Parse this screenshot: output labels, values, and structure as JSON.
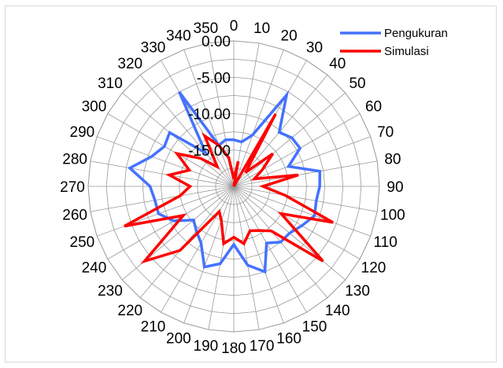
{
  "chart_data": {
    "type": "radar",
    "title": "",
    "theta_labels": [
      "0",
      "10",
      "20",
      "30",
      "40",
      "50",
      "60",
      "70",
      "80",
      "90",
      "100",
      "110",
      "120",
      "130",
      "140",
      "150",
      "160",
      "170",
      "180",
      "190",
      "200",
      "210",
      "220",
      "230",
      "240",
      "250",
      "260",
      "270",
      "280",
      "290",
      "300",
      "310",
      "320",
      "330",
      "340",
      "350"
    ],
    "radial_tick_labels": [
      "-15.00",
      "-10.00",
      "-5.00",
      "0.00"
    ],
    "rlim": [
      -20,
      0
    ],
    "legend_position": "top-right",
    "colors": {
      "Pengukuran": "#4472ff",
      "Simulasi": "#ff0000",
      "grid": "#999999"
    },
    "series": [
      {
        "name": "Pengukuran",
        "values": [
          -13.6,
          -13.8,
          -12.5,
          -5.5,
          -10.3,
          -9.6,
          -9.5,
          -12.0,
          -8.0,
          -8.2,
          -8.5,
          -8.2,
          -9.2,
          -10.0,
          -10.0,
          -11.0,
          -7.5,
          -9.0,
          -12.0,
          -9.2,
          -8.2,
          -11.0,
          -12.0,
          -12.8,
          -10.5,
          -9.0,
          -9.0,
          -8.5,
          -5.5,
          -8.0,
          -9.0,
          -8.5,
          -14.0,
          -5.0,
          -14.0,
          -13.5
        ]
      },
      {
        "name": "Simulasi",
        "values": [
          -19.0,
          -16.5,
          -20.0,
          -8.5,
          -17.5,
          -13.0,
          -15.5,
          -17.0,
          -11.0,
          -16.0,
          -12.8,
          -5.5,
          -12.5,
          -4.0,
          -12.0,
          -13.0,
          -13.5,
          -12.0,
          -13.0,
          -12.0,
          -15.0,
          -16.0,
          -8.5,
          -4.0,
          -12.0,
          -4.0,
          -12.5,
          -14.0,
          -11.0,
          -13.5,
          -11.0,
          -14.0,
          -16.5,
          -12.0,
          -14.0,
          -16.0
        ]
      }
    ]
  }
}
